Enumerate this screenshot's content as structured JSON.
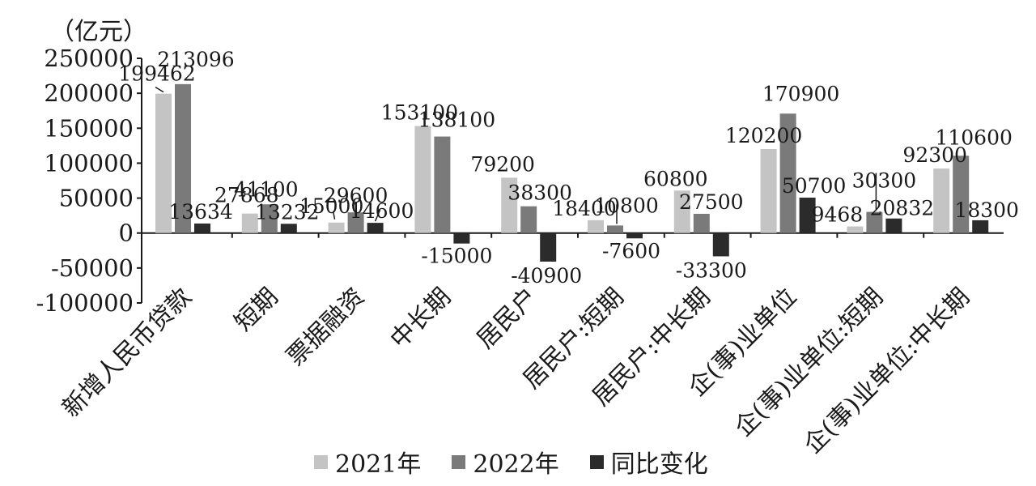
{
  "chart_data": {
    "type": "bar",
    "unit_label": "（亿元）",
    "categories": [
      "新增人民币贷款",
      "短期",
      "票据融资",
      "中长期",
      "居民户",
      "居民户:短期",
      "居民户:中长期",
      "企(事)业单位",
      "企(事)业单位:短期",
      "企(事)业单位:中长期"
    ],
    "series": [
      {
        "name": "2021年",
        "color": "#c4c4c4",
        "values": [
          199462,
          27868,
          15000,
          153100,
          79200,
          18400,
          60800,
          120200,
          9468,
          92300
        ]
      },
      {
        "name": "2022年",
        "color": "#7a7a7a",
        "values": [
          213096,
          41100,
          29600,
          138100,
          38300,
          10800,
          27500,
          170900,
          30300,
          110600
        ]
      },
      {
        "name": "同比变化",
        "color": "#2b2b2b",
        "values": [
          13634,
          13232,
          14600,
          -15000,
          -40900,
          -7600,
          -33300,
          50700,
          20832,
          18300
        ]
      }
    ],
    "data_labels": [
      [
        "199462",
        "27868",
        "15000",
        "153100",
        "79200",
        "18400",
        "60800",
        "120200",
        "9468",
        "92300"
      ],
      [
        "213096",
        "41100",
        "29600",
        "138100",
        "38300",
        "10800",
        "27500",
        "170900",
        "30300",
        "110600"
      ],
      [
        "13634",
        "13232",
        "14600",
        "-15000",
        "-40900",
        "-7600",
        "-33300",
        "50700",
        "20832",
        "18300"
      ]
    ],
    "y_ticks": [
      250000,
      200000,
      150000,
      100000,
      50000,
      0,
      -50000,
      -100000
    ],
    "y_tick_labels": [
      "250000",
      "200000",
      "150000",
      "100000",
      "50000",
      "0",
      "-50000",
      "-100000"
    ],
    "ylim": [
      -100000,
      250000
    ],
    "grid": false,
    "legend_position": "bottom"
  }
}
